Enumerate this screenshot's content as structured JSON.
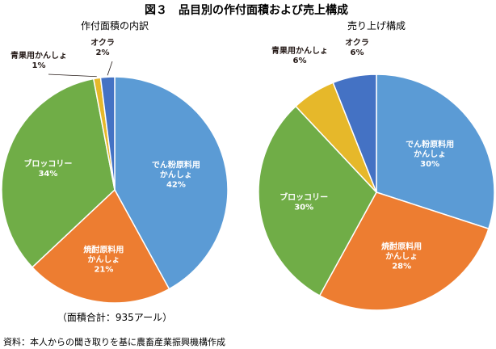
{
  "figure_title": "図３　品目別の作付面積および売上構成",
  "source": "資料：本人からの聞き取りを基に農畜産業振興機構作成",
  "chart_data": [
    {
      "type": "pie",
      "title": "作付面積の内訳",
      "note": "（面積合計：935アール）",
      "slices": [
        {
          "name": "でん粉原料用かんしょ",
          "label_lines": [
            "でん粉原料用",
            "かんしょ"
          ],
          "value": 42,
          "label": "42%",
          "color": "#5b9bd5"
        },
        {
          "name": "焼酎原料用かんしょ",
          "label_lines": [
            "焼酎原料用",
            "かんしょ"
          ],
          "value": 21,
          "label": "21%",
          "color": "#ed7d31"
        },
        {
          "name": "ブロッコリー",
          "label_lines": [
            "ブロッコリー"
          ],
          "value": 34,
          "label": "34%",
          "color": "#70ad47"
        },
        {
          "name": "青果用かんしょ",
          "label_lines": [
            "青果用かんしょ"
          ],
          "value": 1,
          "label": "1%",
          "color": "#e6b82a"
        },
        {
          "name": "オクラ",
          "label_lines": [
            "オクラ"
          ],
          "value": 2,
          "label": "2%",
          "color": "#4472c4"
        }
      ]
    },
    {
      "type": "pie",
      "title": "売り上げ構成",
      "slices": [
        {
          "name": "でん粉原料用かんしょ",
          "label_lines": [
            "でん粉原料用",
            "かんしょ"
          ],
          "value": 30,
          "label": "30%",
          "color": "#5b9bd5"
        },
        {
          "name": "焼酎原料用かんしょ",
          "label_lines": [
            "焼酎原料用",
            "かんしょ"
          ],
          "value": 28,
          "label": "28%",
          "color": "#ed7d31"
        },
        {
          "name": "ブロッコリー",
          "label_lines": [
            "ブロッコリー"
          ],
          "value": 30,
          "label": "30%",
          "color": "#70ad47"
        },
        {
          "name": "青果用かんしょ",
          "label_lines": [
            "青果用かんしょ"
          ],
          "value": 6,
          "label": "6%",
          "color": "#e6b82a"
        },
        {
          "name": "オクラ",
          "label_lines": [
            "オクラ"
          ],
          "value": 6,
          "label": "6%",
          "color": "#4472c4"
        }
      ]
    }
  ]
}
